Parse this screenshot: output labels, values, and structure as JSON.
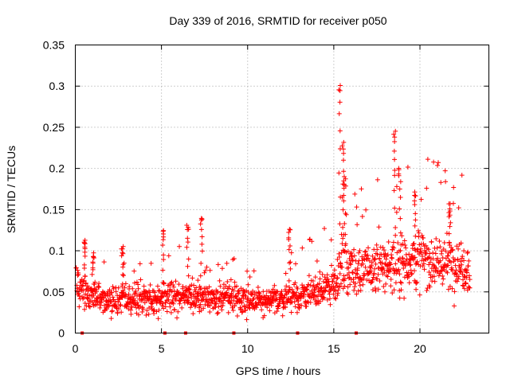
{
  "chart_data": {
    "type": "scatter",
    "title": "Day 339 of 2016, SRMTID for receiver p050",
    "xlabel": "GPS time / hours",
    "ylabel": "SRMTID / TECUs",
    "xlim": [
      0,
      24
    ],
    "ylim": [
      0,
      0.35
    ],
    "x_ticks": [
      0,
      5,
      10,
      15,
      20
    ],
    "x_tick_labels": [
      "0",
      "5",
      "10",
      "15",
      "20"
    ],
    "y_ticks": [
      0,
      0.05,
      0.1,
      0.15,
      0.2,
      0.25,
      0.3,
      0.35
    ],
    "y_tick_labels": [
      "0",
      "0.05",
      "0.1",
      "0.15",
      "0.2",
      "0.25",
      "0.3",
      "0.35"
    ],
    "grid": true,
    "marker": "+",
    "color": "#ff0000",
    "series": [
      {
        "name": "SRMTID",
        "trend": [
          {
            "x": 0.05,
            "y": 0.06
          },
          {
            "x": 0.5,
            "y": 0.05
          },
          {
            "x": 1.0,
            "y": 0.045
          },
          {
            "x": 2.0,
            "y": 0.04
          },
          {
            "x": 3.0,
            "y": 0.042
          },
          {
            "x": 4.0,
            "y": 0.043
          },
          {
            "x": 5.0,
            "y": 0.04
          },
          {
            "x": 6.0,
            "y": 0.045
          },
          {
            "x": 7.0,
            "y": 0.045
          },
          {
            "x": 8.0,
            "y": 0.043
          },
          {
            "x": 9.0,
            "y": 0.045
          },
          {
            "x": 10.0,
            "y": 0.04
          },
          {
            "x": 11.0,
            "y": 0.038
          },
          {
            "x": 12.0,
            "y": 0.042
          },
          {
            "x": 13.0,
            "y": 0.045
          },
          {
            "x": 14.0,
            "y": 0.05
          },
          {
            "x": 15.0,
            "y": 0.06
          },
          {
            "x": 15.5,
            "y": 0.085
          },
          {
            "x": 16.5,
            "y": 0.075
          },
          {
            "x": 17.5,
            "y": 0.078
          },
          {
            "x": 18.5,
            "y": 0.085
          },
          {
            "x": 19.5,
            "y": 0.09
          },
          {
            "x": 20.5,
            "y": 0.09
          },
          {
            "x": 21.5,
            "y": 0.085
          },
          {
            "x": 22.5,
            "y": 0.085
          },
          {
            "x": 22.9,
            "y": 0.08
          }
        ],
        "spread": 0.4,
        "bursts": [
          {
            "x": 0.5,
            "y": 0.11
          },
          {
            "x": 1.0,
            "y": 0.095
          },
          {
            "x": 2.7,
            "y": 0.105
          },
          {
            "x": 5.1,
            "y": 0.125
          },
          {
            "x": 6.5,
            "y": 0.13
          },
          {
            "x": 7.3,
            "y": 0.14
          },
          {
            "x": 12.4,
            "y": 0.125
          },
          {
            "x": 15.3,
            "y": 0.3
          },
          {
            "x": 15.5,
            "y": 0.23
          },
          {
            "x": 15.6,
            "y": 0.19
          },
          {
            "x": 18.5,
            "y": 0.245
          },
          {
            "x": 18.8,
            "y": 0.2
          },
          {
            "x": 19.7,
            "y": 0.17
          },
          {
            "x": 21.7,
            "y": 0.155
          }
        ]
      }
    ],
    "data_gaps_x": [
      0.4,
      5.2,
      6.4,
      9.2,
      12.9,
      16.3
    ]
  }
}
